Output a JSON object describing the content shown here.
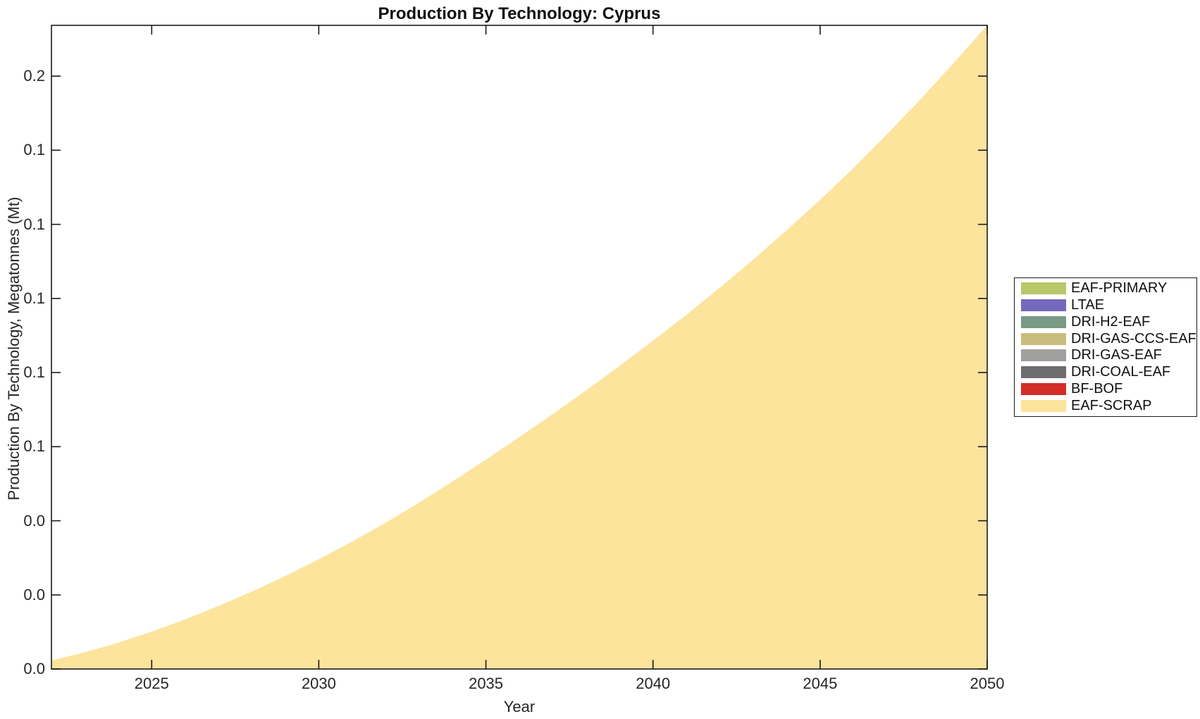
{
  "chart_data": {
    "type": "area",
    "stacked": true,
    "title": "Production By Technology: Cyprus",
    "xlabel": "Year",
    "ylabel": "Production By Technology, Megatonnes (Mt)",
    "x_range": [
      2022,
      2050
    ],
    "y_range": [
      0,
      0.1737
    ],
    "grid": false,
    "tick_direction": "in",
    "x_ticks": [
      {
        "value": 2025,
        "label": "2025"
      },
      {
        "value": 2030,
        "label": "2030"
      },
      {
        "value": 2035,
        "label": "2035"
      },
      {
        "value": 2040,
        "label": "2040"
      },
      {
        "value": 2045,
        "label": "2045"
      },
      {
        "value": 2050,
        "label": "2050"
      }
    ],
    "y_ticks": [
      {
        "value": 0.0,
        "label": "0.0"
      },
      {
        "value": 0.02,
        "label": "0.0"
      },
      {
        "value": 0.04,
        "label": "0.0"
      },
      {
        "value": 0.06,
        "label": "0.1"
      },
      {
        "value": 0.08,
        "label": "0.1"
      },
      {
        "value": 0.1,
        "label": "0.1"
      },
      {
        "value": 0.12,
        "label": "0.1"
      },
      {
        "value": 0.14,
        "label": "0.1"
      },
      {
        "value": 0.16,
        "label": "0.2"
      }
    ],
    "legend": {
      "position": "right-outside",
      "entries": [
        {
          "label": "EAF-PRIMARY",
          "color": "#b9c769"
        },
        {
          "label": "LTAE",
          "color": "#7569bd"
        },
        {
          "label": "DRI-H2-EAF",
          "color": "#7a9a85"
        },
        {
          "label": "DRI-GAS-CCS-EAF",
          "color": "#c9bd7d"
        },
        {
          "label": "DRI-GAS-EAF",
          "color": "#9f9f9d"
        },
        {
          "label": "DRI-COAL-EAF",
          "color": "#6e6e6e"
        },
        {
          "label": "BF-BOF",
          "color": "#d32d27"
        },
        {
          "label": "EAF-SCRAP",
          "color": "#fde49c"
        }
      ]
    },
    "series": [
      {
        "name": "EAF-SCRAP",
        "color": "#fde49c",
        "x": [
          2022,
          2023,
          2024,
          2025,
          2026,
          2027,
          2028,
          2029,
          2030,
          2031,
          2032,
          2033,
          2034,
          2035,
          2036,
          2037,
          2038,
          2039,
          2040,
          2041,
          2042,
          2043,
          2044,
          2045,
          2046,
          2047,
          2048,
          2049,
          2050
        ],
        "values": [
          0.0023,
          0.0045,
          0.0071,
          0.0101,
          0.0134,
          0.017,
          0.0209,
          0.0251,
          0.0296,
          0.0344,
          0.0395,
          0.0449,
          0.0506,
          0.0565,
          0.0626,
          0.0688,
          0.0752,
          0.0818,
          0.0886,
          0.0956,
          0.1029,
          0.1105,
          0.1184,
          0.1266,
          0.1352,
          0.1443,
          0.1537,
          0.1636,
          0.1737
        ]
      },
      {
        "name": "EAF-PRIMARY",
        "color": "#b9c769",
        "values_all_years": 0
      },
      {
        "name": "LTAE",
        "color": "#7569bd",
        "values_all_years": 0
      },
      {
        "name": "DRI-H2-EAF",
        "color": "#7a9a85",
        "values_all_years": 0
      },
      {
        "name": "DRI-GAS-CCS-EAF",
        "color": "#c9bd7d",
        "values_all_years": 0
      },
      {
        "name": "DRI-GAS-EAF",
        "color": "#9f9f9d",
        "values_all_years": 0
      },
      {
        "name": "DRI-COAL-EAF",
        "color": "#6e6e6e",
        "values_all_years": 0
      },
      {
        "name": "BF-BOF",
        "color": "#d32d27",
        "values_all_years": 0
      }
    ],
    "axis_color": "#1a1a1a"
  }
}
